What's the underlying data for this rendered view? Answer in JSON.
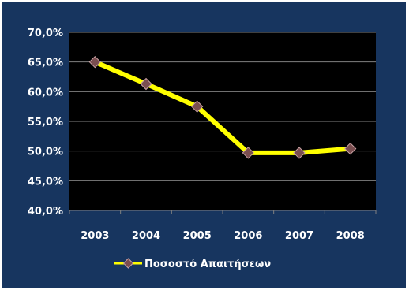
{
  "colors": {
    "frame": "#17355f",
    "plot": "#000000",
    "grid": "#808080",
    "axis_text": "#ffffff",
    "line": "#ffff00",
    "marker": "#7a4e50",
    "marker_edge": "#c9a3a5"
  },
  "chart_data": {
    "type": "line",
    "categories": [
      "2003",
      "2004",
      "2005",
      "2006",
      "2007",
      "2008"
    ],
    "series": [
      {
        "name": "Ποσοστό Απαιτήσεων",
        "values": [
          65.0,
          61.3,
          57.5,
          49.7,
          49.7,
          50.4
        ],
        "color": "#ffff00",
        "marker": "diamond"
      }
    ],
    "ylim": [
      40.0,
      70.0
    ],
    "yticks": [
      "70,0%",
      "65,0%",
      "60,0%",
      "55,0%",
      "50,0%",
      "45,0%",
      "40,0%"
    ],
    "grid": true,
    "legend": "bottom"
  }
}
